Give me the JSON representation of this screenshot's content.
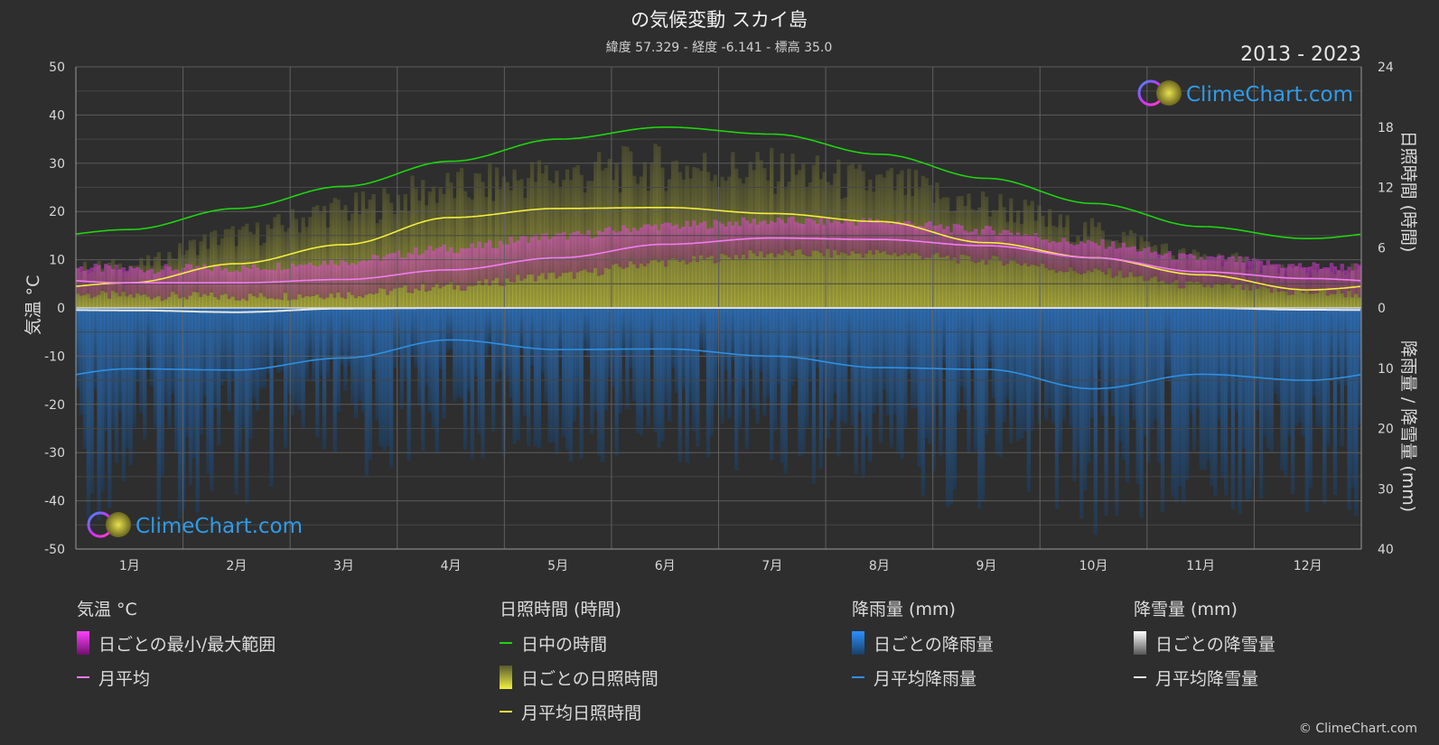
{
  "header": {
    "title": "の気候変動 スカイ島",
    "subtitle": "緯度 57.329 - 経度 -6.141 - 標高 35.0",
    "year_range": "2013 - 2023"
  },
  "brand": {
    "name": "ClimeChart.com",
    "copyright": "© ClimeChart.com"
  },
  "axes": {
    "left_label": "気温 °C",
    "right_top_label": "日照時間 (時間)",
    "right_bottom_label": "降雨量 / 降雪量 (mm)",
    "left_ticks": [
      50,
      40,
      30,
      20,
      10,
      0,
      -10,
      -20,
      -30,
      -40,
      -50
    ],
    "right_top_ticks": [
      24,
      18,
      12,
      6,
      0
    ],
    "right_bottom_ticks": [
      10,
      20,
      30,
      40
    ]
  },
  "colors": {
    "background": "#2e2e2e",
    "daylight": "#1ed40f",
    "sunshine_line": "#f2ee3c",
    "temp_line": "#f07cf0",
    "temp_range": "#d838c8",
    "rain_line": "#2f8fe0",
    "rain_bar": "#2f7fd0",
    "snow_line": "#e6e6e6",
    "brand_text": "#2f9be8"
  },
  "legend": {
    "temperature": {
      "title": "気温 °C",
      "items": [
        {
          "label": "日ごとの最小/最大範囲",
          "swatch": "temp-range"
        },
        {
          "label": "月平均",
          "swatch": "temp-line"
        }
      ]
    },
    "sunshine": {
      "title": "日照時間 (時間)",
      "items": [
        {
          "label": "日中の時間",
          "swatch": "daylight-line"
        },
        {
          "label": "日ごとの日照時間",
          "swatch": "sunshine-bar"
        },
        {
          "label": "月平均日照時間",
          "swatch": "sunshine-line"
        }
      ]
    },
    "rain": {
      "title": "降雨量 (mm)",
      "items": [
        {
          "label": "日ごとの降雨量",
          "swatch": "rain-bar"
        },
        {
          "label": "月平均降雨量",
          "swatch": "rain-line"
        }
      ]
    },
    "snow": {
      "title": "降雪量 (mm)",
      "items": [
        {
          "label": "日ごとの降雪量",
          "swatch": "snow-bar"
        },
        {
          "label": "月平均降雪量",
          "swatch": "snow-line"
        }
      ]
    }
  },
  "chart_data": {
    "type": "line",
    "categories": [
      "1月",
      "2月",
      "3月",
      "4月",
      "5月",
      "6月",
      "7月",
      "8月",
      "9月",
      "10月",
      "11月",
      "12月"
    ],
    "temp_axis": [
      -50,
      50
    ],
    "sun_axis": [
      0,
      24
    ],
    "precip_axis": [
      0,
      40
    ],
    "grid": true,
    "series": [
      {
        "name": "日中の時間",
        "axis": "sun",
        "values": [
          7.8,
          9.9,
          12.1,
          14.6,
          16.8,
          18.0,
          17.3,
          15.3,
          12.9,
          10.4,
          8.1,
          6.9
        ]
      },
      {
        "name": "月平均日照時間",
        "axis": "sun",
        "values": [
          2.5,
          4.4,
          6.3,
          9.0,
          9.9,
          10.0,
          9.4,
          8.6,
          6.5,
          5.0,
          3.3,
          1.8
        ]
      },
      {
        "name": "月平均",
        "axis": "temp",
        "values": [
          5.2,
          5.2,
          5.9,
          7.9,
          10.4,
          13.2,
          14.5,
          14.2,
          12.9,
          10.4,
          7.5,
          6.1
        ]
      },
      {
        "name": "月平均降雨量",
        "axis": "precip",
        "values": [
          10.1,
          10.3,
          8.3,
          5.3,
          6.9,
          6.8,
          8.0,
          9.9,
          10.2,
          13.4,
          11.0,
          12.0
        ]
      },
      {
        "name": "月平均降雪量",
        "axis": "precip",
        "values": [
          0.4,
          0.7,
          0.1,
          0.0,
          0.0,
          0.0,
          0.0,
          0.0,
          0.0,
          0.0,
          0.0,
          0.3
        ]
      }
    ],
    "daily_temp_range": {
      "min": [
        2.5,
        2.3,
        2.8,
        4.4,
        6.7,
        9.5,
        11.2,
        11.3,
        9.9,
        7.4,
        4.6,
        3.2
      ],
      "max": [
        8.1,
        8.2,
        9.7,
        12.3,
        14.9,
        17.0,
        18.0,
        17.9,
        16.1,
        13.3,
        10.3,
        8.7
      ]
    },
    "daily_sunshine_max": [
      5.0,
      8.5,
      11.5,
      14.0,
      15.5,
      16.5,
      16.0,
      14.5,
      12.0,
      9.0,
      6.0,
      4.2
    ],
    "daily_rain_max": [
      35,
      36,
      30,
      25,
      27,
      26,
      28,
      32,
      34,
      38,
      34,
      37
    ]
  }
}
